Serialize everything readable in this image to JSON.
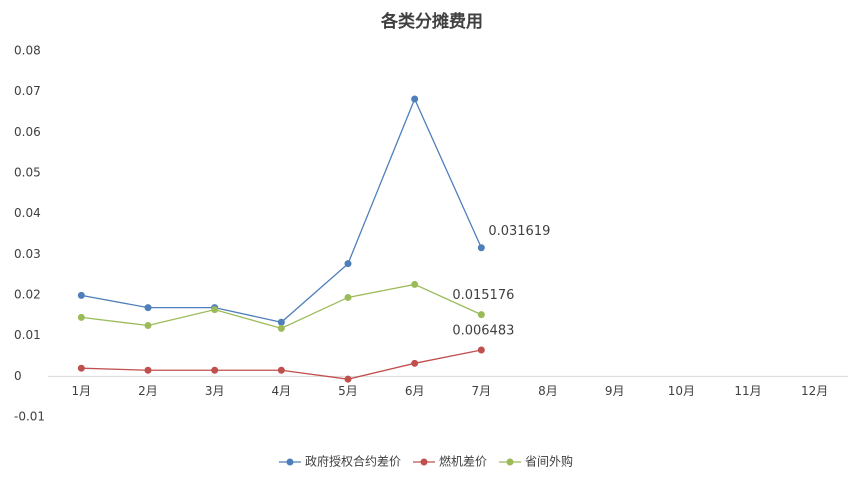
{
  "chart_data": {
    "type": "line",
    "title": "各类分摊费用",
    "categories": [
      "1月",
      "2月",
      "3月",
      "4月",
      "5月",
      "6月",
      "7月",
      "8月",
      "9月",
      "10月",
      "11月",
      "12月"
    ],
    "series": [
      {
        "name": "政府授权合约差价",
        "color": "#4f7fbb",
        "values": [
          0.0199,
          0.0169,
          0.0169,
          0.0133,
          0.0277,
          0.0682,
          0.031619,
          null,
          null,
          null,
          null,
          null
        ],
        "value_labels": [
          null,
          null,
          null,
          null,
          null,
          null,
          "0.031619",
          null,
          null,
          null,
          null,
          null
        ]
      },
      {
        "name": "燃机差价",
        "color": "#c0504d",
        "values": [
          0.002,
          0.0015,
          0.0015,
          0.0015,
          -0.0007,
          0.0032,
          0.006483,
          null,
          null,
          null,
          null,
          null
        ],
        "value_labels": [
          null,
          null,
          null,
          null,
          null,
          null,
          "0.006483",
          null,
          null,
          null,
          null,
          null
        ]
      },
      {
        "name": "省间外购",
        "color": "#9bbb59",
        "values": [
          0.0145,
          0.0125,
          0.0164,
          0.0118,
          0.0194,
          0.0226,
          0.015176,
          null,
          null,
          null,
          null,
          null
        ],
        "value_labels": [
          null,
          null,
          null,
          null,
          null,
          null,
          "0.015176",
          null,
          null,
          null,
          null,
          null
        ]
      }
    ],
    "ylim": [
      -0.01,
      0.08
    ],
    "yticks": [
      -0.01,
      0,
      0.01,
      0.02,
      0.03,
      0.04,
      0.05,
      0.06,
      0.07,
      0.08
    ],
    "grid": false,
    "legend": "bottom"
  }
}
